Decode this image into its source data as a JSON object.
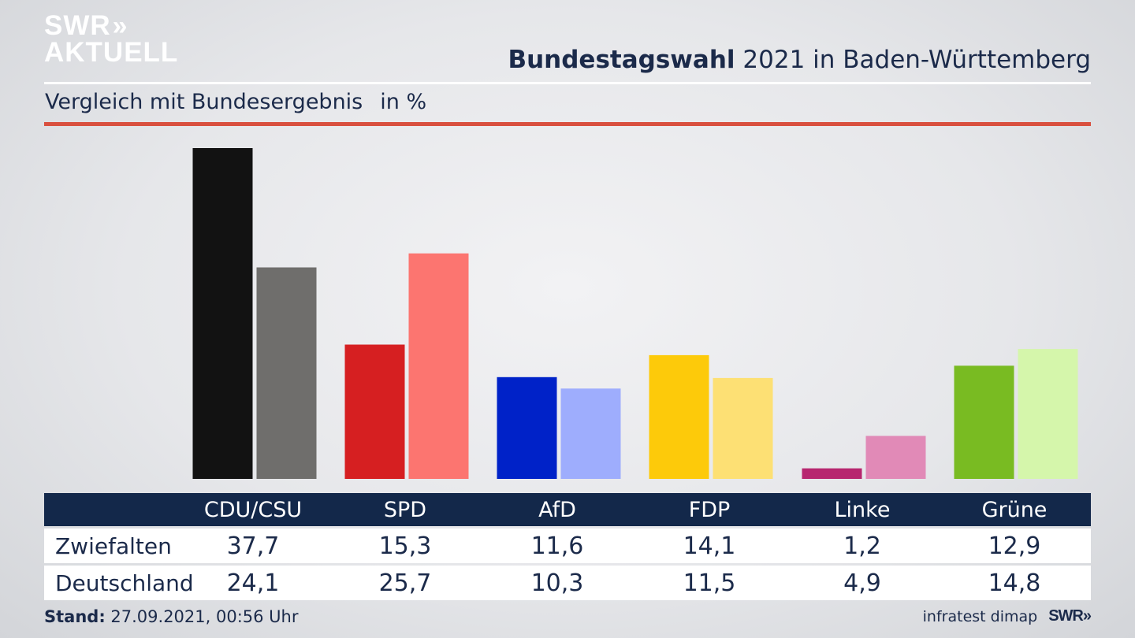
{
  "logo": {
    "line1": "SWR",
    "line1_chevrons": "»",
    "line2": "AKTUELL"
  },
  "header": {
    "title_bold": "Bundestagswahl",
    "title_rest": " 2021 in Baden-Württemberg"
  },
  "subtitle": {
    "text": "Vergleich mit Bundesergebnis",
    "unit": "in %"
  },
  "colors": {
    "background": "#e6e7ea",
    "title": "#1b2a4a",
    "red_rule": "#d9503f",
    "table_header": "#13284a"
  },
  "chart_data": {
    "type": "bar",
    "title": "",
    "categories": [
      "CDU/CSU",
      "SPD",
      "AfD",
      "FDP",
      "Linke",
      "Grüne"
    ],
    "series": [
      {
        "name": "Zwiefalten",
        "values": [
          37.7,
          15.3,
          11.6,
          14.1,
          1.2,
          12.9
        ],
        "colors": [
          "#121212",
          "#d61f21",
          "#0022c8",
          "#fdca0a",
          "#b7266f",
          "#79bb22"
        ]
      },
      {
        "name": "Deutschland",
        "values": [
          24.1,
          25.7,
          10.3,
          11.5,
          4.9,
          14.8
        ],
        "colors": [
          "#6f6e6c",
          "#fc7570",
          "#9eadfd",
          "#fde074",
          "#e18ab7",
          "#d5f6ab"
        ]
      }
    ],
    "ylim": [
      0,
      37.7
    ],
    "grid": false,
    "xlabel": "",
    "ylabel": ""
  },
  "table": {
    "header": [
      "CDU/CSU",
      "SPD",
      "AfD",
      "FDP",
      "Linke",
      "Grüne"
    ],
    "rows": [
      {
        "label": "Zwiefalten",
        "values": [
          "37,7",
          "15,3",
          "11,6",
          "14,1",
          "1,2",
          "12,9"
        ]
      },
      {
        "label": "Deutschland",
        "values": [
          "24,1",
          "25,7",
          "10,3",
          "11,5",
          "4,9",
          "14,8"
        ]
      }
    ]
  },
  "footer": {
    "stand_label": "Stand:",
    "stand_value": " 27.09.2021, 00:56 Uhr",
    "source": "infratest dimap",
    "brand": "SWR»"
  }
}
